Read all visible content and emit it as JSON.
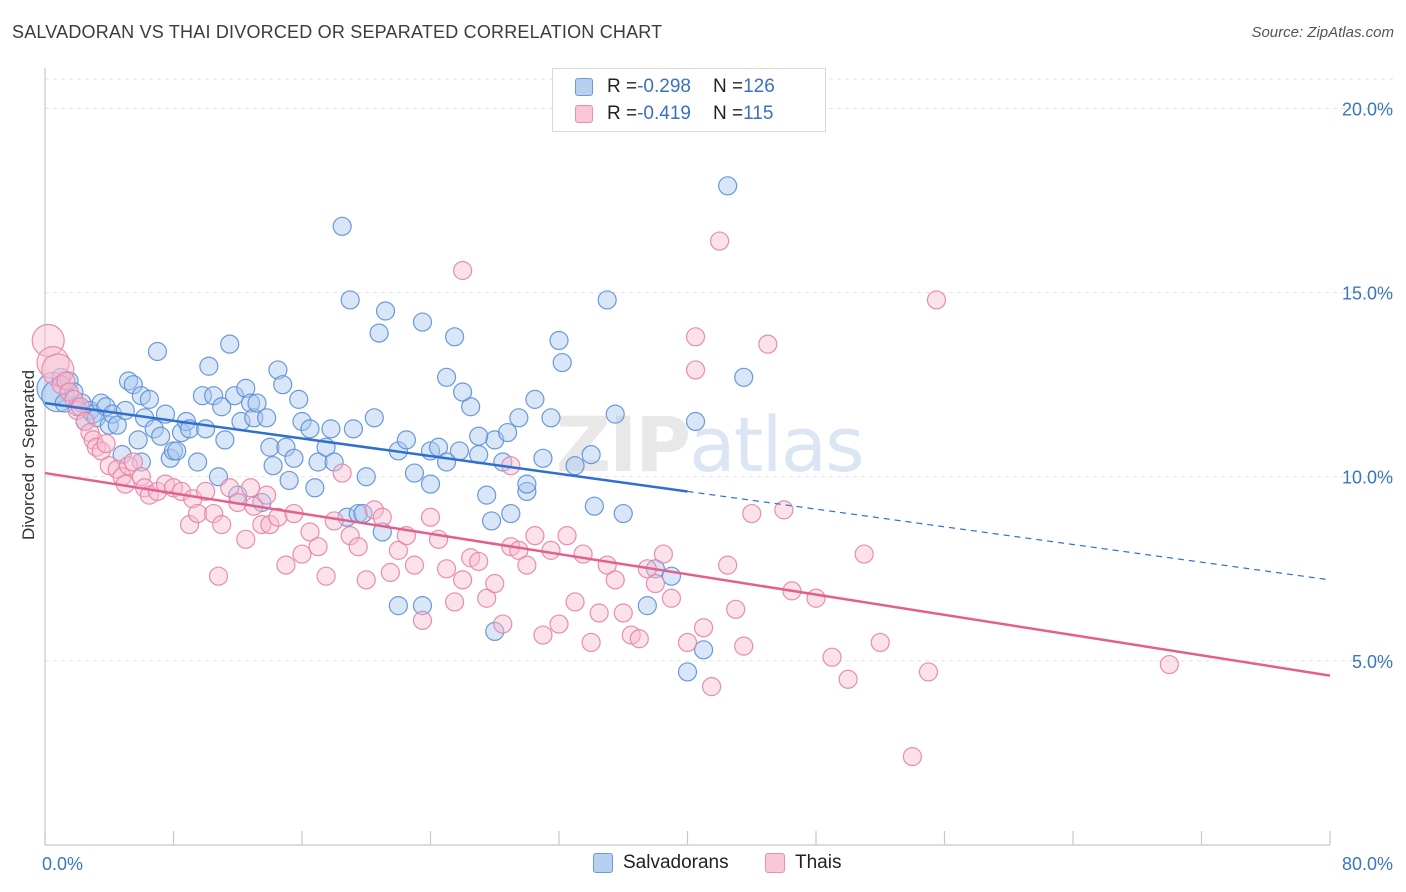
{
  "title": "SALVADORAN VS THAI DIVORCED OR SEPARATED CORRELATION CHART",
  "source": "Source: ZipAtlas.com",
  "watermark": {
    "zip": "ZIP",
    "atlas": "atlas"
  },
  "legend": {
    "rows": [
      {
        "r_label": "R = ",
        "r_value": "-0.298",
        "n_label": "N = ",
        "n_value": "126"
      },
      {
        "r_label": "R = ",
        "r_value": "-0.419",
        "n_label": "N = ",
        "n_value": "115"
      }
    ]
  },
  "bottom_legend": [
    "Salvadorans",
    "Thais"
  ],
  "colors": {
    "blue_fill": "#a9c8ee",
    "blue_stroke": "#5b8fd6",
    "blue_line": "#2f6fd0",
    "pink_fill": "#f6bcd0",
    "pink_stroke": "#e782a6",
    "pink_line": "#e45f8e",
    "tick": "#3a76c4",
    "grid": "#e3e3e3"
  },
  "chart_data": {
    "type": "scatter",
    "title": "SALVADORAN VS THAI DIVORCED OR SEPARATED CORRELATION CHART",
    "xlabel": "",
    "ylabel": "Divorced or Separated",
    "x_unit": "%",
    "y_unit": "%",
    "xlim": [
      0,
      80
    ],
    "ylim": [
      0,
      20.8
    ],
    "x_tick_labels": [
      "0.0%",
      "80.0%"
    ],
    "y_ticks": [
      5,
      10,
      15,
      20
    ],
    "y_tick_labels": [
      "5.0%",
      "10.0%",
      "15.0%",
      "20.0%"
    ],
    "grid": true,
    "legend_position": "top-center",
    "series": [
      {
        "name": "Salvadorans",
        "R": -0.298,
        "N": 126,
        "trend": {
          "x0": 0,
          "y0": 12.0,
          "x1": 40,
          "y1": 9.6,
          "dashed_to_x": 80,
          "dashed_to_y": 7.2
        },
        "points": [
          [
            0.5,
            12.4
          ],
          [
            0.8,
            12.2
          ],
          [
            1.0,
            12.7
          ],
          [
            1.2,
            12.0
          ],
          [
            1.5,
            12.6
          ],
          [
            1.8,
            12.3
          ],
          [
            2.0,
            11.9
          ],
          [
            2.3,
            12.0
          ],
          [
            2.5,
            11.5
          ],
          [
            2.8,
            11.8
          ],
          [
            3.0,
            11.7
          ],
          [
            3.2,
            11.6
          ],
          [
            3.5,
            12.0
          ],
          [
            3.8,
            11.9
          ],
          [
            4.0,
            11.4
          ],
          [
            4.2,
            11.7
          ],
          [
            4.5,
            11.4
          ],
          [
            4.8,
            10.6
          ],
          [
            5.0,
            11.8
          ],
          [
            5.2,
            12.6
          ],
          [
            5.5,
            12.5
          ],
          [
            5.8,
            11.0
          ],
          [
            6.0,
            12.2
          ],
          [
            6.2,
            11.6
          ],
          [
            6.5,
            12.1
          ],
          [
            6.8,
            11.3
          ],
          [
            6.0,
            10.4
          ],
          [
            7.0,
            13.4
          ],
          [
            7.2,
            11.1
          ],
          [
            7.5,
            11.7
          ],
          [
            7.8,
            10.5
          ],
          [
            8.0,
            10.7
          ],
          [
            8.2,
            10.7
          ],
          [
            8.5,
            11.2
          ],
          [
            8.8,
            11.5
          ],
          [
            9.0,
            11.3
          ],
          [
            9.5,
            10.4
          ],
          [
            9.8,
            12.2
          ],
          [
            10.0,
            11.3
          ],
          [
            10.2,
            13.0
          ],
          [
            10.5,
            12.2
          ],
          [
            10.8,
            10.0
          ],
          [
            11.0,
            11.9
          ],
          [
            11.2,
            11.0
          ],
          [
            11.5,
            13.6
          ],
          [
            11.8,
            12.2
          ],
          [
            12.0,
            9.5
          ],
          [
            12.2,
            11.5
          ],
          [
            12.5,
            12.4
          ],
          [
            12.8,
            12.0
          ],
          [
            13.0,
            11.6
          ],
          [
            13.2,
            12.0
          ],
          [
            13.5,
            9.3
          ],
          [
            13.8,
            11.6
          ],
          [
            14.0,
            10.8
          ],
          [
            14.2,
            10.3
          ],
          [
            14.5,
            12.9
          ],
          [
            14.8,
            12.5
          ],
          [
            15.0,
            10.8
          ],
          [
            15.2,
            9.9
          ],
          [
            15.5,
            10.5
          ],
          [
            15.8,
            12.1
          ],
          [
            16.0,
            11.5
          ],
          [
            16.5,
            11.3
          ],
          [
            16.8,
            9.7
          ],
          [
            17.0,
            10.4
          ],
          [
            17.5,
            10.8
          ],
          [
            17.8,
            11.3
          ],
          [
            18.0,
            10.4
          ],
          [
            18.5,
            16.8
          ],
          [
            18.8,
            8.9
          ],
          [
            19.0,
            14.8
          ],
          [
            19.2,
            11.3
          ],
          [
            19.5,
            9.0
          ],
          [
            19.8,
            9.0
          ],
          [
            20.0,
            10.0
          ],
          [
            20.5,
            11.6
          ],
          [
            20.8,
            13.9
          ],
          [
            21.0,
            8.5
          ],
          [
            21.2,
            14.5
          ],
          [
            22.0,
            10.7
          ],
          [
            22.5,
            11.0
          ],
          [
            23.0,
            10.1
          ],
          [
            23.5,
            14.2
          ],
          [
            24.0,
            10.7
          ],
          [
            24.0,
            9.8
          ],
          [
            24.5,
            10.8
          ],
          [
            25.0,
            12.7
          ],
          [
            25.5,
            13.8
          ],
          [
            25.8,
            10.7
          ],
          [
            26.5,
            11.9
          ],
          [
            27.0,
            10.6
          ],
          [
            27.5,
            9.5
          ],
          [
            27.8,
            8.8
          ],
          [
            28.0,
            11.0
          ],
          [
            28.5,
            10.4
          ],
          [
            28.8,
            11.2
          ],
          [
            29.0,
            9.0
          ],
          [
            29.5,
            11.6
          ],
          [
            30.0,
            9.6
          ],
          [
            30.5,
            12.1
          ],
          [
            31.0,
            10.5
          ],
          [
            31.5,
            11.6
          ],
          [
            32.0,
            13.7
          ],
          [
            32.2,
            13.1
          ],
          [
            33.0,
            10.3
          ],
          [
            34.0,
            10.6
          ],
          [
            34.2,
            9.2
          ],
          [
            35.0,
            14.8
          ],
          [
            35.5,
            11.7
          ],
          [
            36.0,
            9.0
          ],
          [
            37.5,
            6.5
          ],
          [
            38.0,
            7.5
          ],
          [
            39.0,
            7.3
          ],
          [
            40.0,
            4.7
          ],
          [
            40.5,
            11.5
          ],
          [
            41.0,
            5.3
          ],
          [
            42.5,
            17.9
          ],
          [
            43.5,
            12.7
          ],
          [
            22.0,
            6.5
          ],
          [
            23.5,
            6.5
          ],
          [
            25.0,
            10.4
          ],
          [
            26.0,
            12.3
          ],
          [
            27.0,
            11.1
          ],
          [
            28.0,
            5.8
          ],
          [
            30.0,
            9.8
          ]
        ]
      },
      {
        "name": "Thais",
        "R": -0.419,
        "N": 115,
        "trend": {
          "x0": 0,
          "y0": 10.1,
          "x1": 80,
          "y1": 4.6
        },
        "points": [
          [
            0.2,
            13.7
          ],
          [
            0.5,
            13.1
          ],
          [
            0.8,
            12.9
          ],
          [
            1.0,
            12.5
          ],
          [
            1.3,
            12.6
          ],
          [
            1.5,
            12.3
          ],
          [
            1.8,
            12.1
          ],
          [
            2.0,
            11.8
          ],
          [
            2.2,
            11.9
          ],
          [
            2.5,
            11.5
          ],
          [
            2.8,
            11.2
          ],
          [
            3.0,
            11.0
          ],
          [
            3.2,
            10.8
          ],
          [
            3.5,
            10.7
          ],
          [
            3.8,
            10.9
          ],
          [
            4.0,
            10.3
          ],
          [
            4.5,
            10.2
          ],
          [
            4.8,
            10.0
          ],
          [
            5.0,
            9.8
          ],
          [
            5.2,
            10.3
          ],
          [
            5.5,
            10.4
          ],
          [
            6.0,
            10.0
          ],
          [
            6.2,
            9.7
          ],
          [
            6.5,
            9.5
          ],
          [
            7.0,
            9.6
          ],
          [
            7.5,
            9.8
          ],
          [
            8.0,
            9.7
          ],
          [
            8.5,
            9.6
          ],
          [
            9.0,
            8.7
          ],
          [
            9.2,
            9.4
          ],
          [
            9.5,
            9.0
          ],
          [
            10.0,
            9.6
          ],
          [
            10.5,
            9.0
          ],
          [
            10.8,
            7.3
          ],
          [
            11.0,
            8.7
          ],
          [
            11.5,
            9.7
          ],
          [
            12.0,
            9.3
          ],
          [
            12.5,
            8.3
          ],
          [
            12.8,
            9.7
          ],
          [
            13.0,
            9.2
          ],
          [
            13.5,
            8.7
          ],
          [
            13.8,
            9.5
          ],
          [
            14.0,
            8.7
          ],
          [
            14.5,
            8.9
          ],
          [
            15.0,
            7.6
          ],
          [
            15.5,
            9.0
          ],
          [
            16.0,
            7.9
          ],
          [
            16.5,
            8.5
          ],
          [
            17.0,
            8.1
          ],
          [
            17.5,
            7.3
          ],
          [
            18.0,
            8.8
          ],
          [
            18.5,
            10.1
          ],
          [
            19.0,
            8.4
          ],
          [
            19.5,
            8.1
          ],
          [
            20.0,
            7.2
          ],
          [
            20.5,
            9.1
          ],
          [
            21.0,
            8.9
          ],
          [
            21.5,
            7.4
          ],
          [
            22.0,
            8.0
          ],
          [
            22.5,
            8.4
          ],
          [
            23.0,
            7.6
          ],
          [
            23.5,
            6.1
          ],
          [
            24.0,
            8.9
          ],
          [
            24.5,
            8.3
          ],
          [
            25.0,
            7.5
          ],
          [
            25.5,
            6.6
          ],
          [
            26.0,
            7.2
          ],
          [
            26.5,
            7.8
          ],
          [
            27.0,
            7.7
          ],
          [
            27.5,
            6.7
          ],
          [
            28.0,
            7.1
          ],
          [
            28.5,
            6.0
          ],
          [
            29.0,
            8.1
          ],
          [
            29.5,
            8.0
          ],
          [
            30.0,
            7.6
          ],
          [
            30.5,
            8.4
          ],
          [
            31.0,
            5.7
          ],
          [
            31.5,
            8.0
          ],
          [
            32.0,
            6.0
          ],
          [
            32.5,
            8.4
          ],
          [
            33.0,
            6.6
          ],
          [
            33.5,
            7.9
          ],
          [
            34.0,
            5.5
          ],
          [
            34.5,
            6.3
          ],
          [
            35.0,
            7.6
          ],
          [
            35.5,
            7.2
          ],
          [
            36.0,
            6.3
          ],
          [
            36.5,
            5.7
          ],
          [
            37.0,
            5.6
          ],
          [
            37.5,
            7.5
          ],
          [
            38.0,
            7.1
          ],
          [
            38.5,
            7.9
          ],
          [
            39.0,
            6.7
          ],
          [
            40.0,
            5.5
          ],
          [
            40.5,
            13.8
          ],
          [
            41.0,
            5.9
          ],
          [
            41.5,
            4.3
          ],
          [
            42.5,
            7.6
          ],
          [
            43.0,
            6.4
          ],
          [
            43.5,
            5.4
          ],
          [
            44.0,
            9.0
          ],
          [
            45.0,
            13.6
          ],
          [
            46.0,
            9.1
          ],
          [
            46.5,
            6.9
          ],
          [
            48.0,
            6.7
          ],
          [
            49.0,
            5.1
          ],
          [
            50.0,
            4.5
          ],
          [
            51.0,
            7.9
          ],
          [
            52.0,
            5.5
          ],
          [
            54.0,
            2.4
          ],
          [
            55.0,
            4.7
          ],
          [
            55.5,
            14.8
          ],
          [
            70.0,
            4.9
          ],
          [
            26.0,
            15.6
          ],
          [
            40.5,
            12.9
          ],
          [
            42.0,
            16.4
          ],
          [
            29.0,
            10.3
          ]
        ]
      }
    ]
  }
}
